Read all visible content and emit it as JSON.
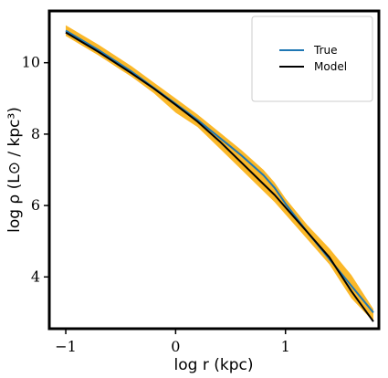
{
  "chart_data": {
    "type": "line",
    "xlabel": "log r (kpc)",
    "ylabel": "log ρ (L⊙ / kpc³)",
    "xlim": [
      -1.15,
      1.85
    ],
    "ylim": [
      2.55,
      11.45
    ],
    "xticks": [
      -1,
      0,
      1
    ],
    "xtick_labels": [
      "−1",
      "0",
      "1"
    ],
    "yticks": [
      4,
      6,
      8,
      10
    ],
    "ytick_labels": [
      "4",
      "6",
      "8",
      "10"
    ],
    "grid": false,
    "legend_position": "top-right",
    "series": [
      {
        "name": "True",
        "color": "#1f77b4",
        "x": [
          -1.0,
          -0.7,
          -0.4,
          -0.2,
          0.0,
          0.2,
          0.4,
          0.6,
          0.8,
          0.9,
          1.0,
          1.2,
          1.4,
          1.6,
          1.8
        ],
        "y": [
          10.9,
          10.35,
          9.75,
          9.3,
          8.85,
          8.4,
          7.9,
          7.4,
          6.85,
          6.5,
          6.05,
          5.25,
          4.5,
          3.75,
          3.0
        ]
      },
      {
        "name": "Model",
        "color": "#000000",
        "x": [
          -1.0,
          -0.7,
          -0.4,
          -0.2,
          0.0,
          0.2,
          0.4,
          0.6,
          0.8,
          0.9,
          1.0,
          1.2,
          1.4,
          1.6,
          1.8
        ],
        "y": [
          10.85,
          10.3,
          9.7,
          9.28,
          8.82,
          8.35,
          7.8,
          7.2,
          6.6,
          6.3,
          5.95,
          5.25,
          4.55,
          3.6,
          2.75
        ]
      }
    ],
    "band": {
      "color": "#fbb829",
      "x": [
        -1.0,
        -0.7,
        -0.4,
        -0.2,
        0.0,
        0.2,
        0.4,
        0.6,
        0.8,
        0.9,
        1.0,
        1.2,
        1.4,
        1.6,
        1.8
      ],
      "upper": [
        11.05,
        10.5,
        9.9,
        9.45,
        9.0,
        8.55,
        8.05,
        7.55,
        7.0,
        6.65,
        6.2,
        5.45,
        4.8,
        4.05,
        3.1
      ],
      "lower": [
        10.75,
        10.2,
        9.6,
        9.15,
        8.6,
        8.2,
        7.6,
        7.0,
        6.4,
        6.1,
        5.75,
        5.05,
        4.35,
        3.4,
        2.75
      ]
    }
  }
}
